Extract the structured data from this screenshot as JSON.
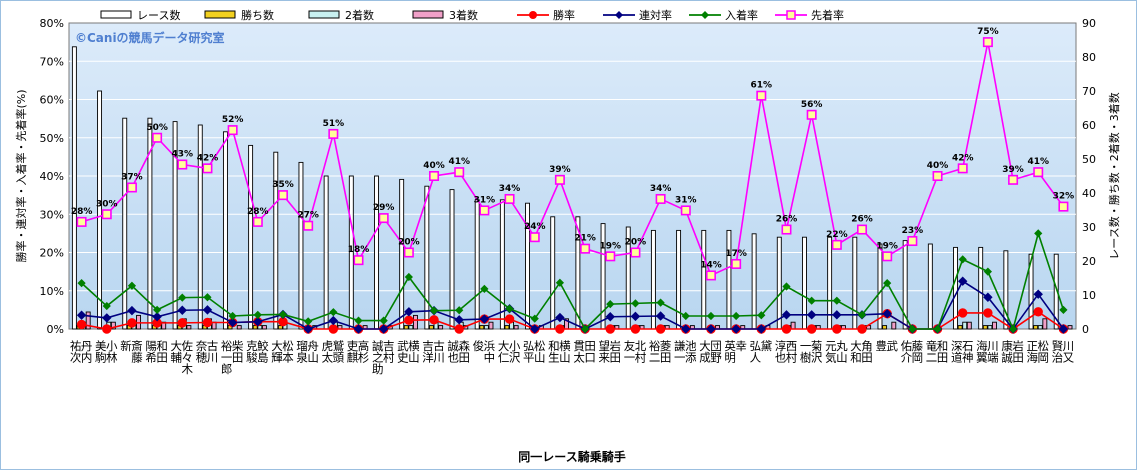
{
  "chart_data": {
    "type": "bar+line",
    "title": "",
    "watermark": "©Caniの競馬データ研究室",
    "xlabel": "同一レース騎乗騎手",
    "ylabel_left": "勝率・連対率・入着率・先着率(%)",
    "ylabel_right": "レース数・勝ち数・2着数・3着数",
    "ylim_left": [
      0,
      80
    ],
    "ylim_right": [
      0,
      90
    ],
    "left_ticks": [
      "0%",
      "10%",
      "20%",
      "30%",
      "40%",
      "50%",
      "60%",
      "70%",
      "80%"
    ],
    "right_ticks": [
      "0",
      "10",
      "20",
      "30",
      "40",
      "50",
      "60",
      "70",
      "80",
      "90"
    ],
    "legend_position": "top",
    "grid": true,
    "categories": [
      "丹内 祐次",
      "小林 美駒",
      "斎藤 新",
      "和田 陽希",
      "佐々木 大輔",
      "古川 奈穂",
      "柴田 裕一郎",
      "鮫島 克駿",
      "松本 大輝",
      "舟山 瑠泉",
      "鷲頭 虎太",
      "高杉 吏麒",
      "吉村 誠之助",
      "横山 武史",
      "古川 吉洋",
      "森田 誠也",
      "浜中 俊",
      "小沢 大仁",
      "松山 弘平",
      "横山 和生",
      "田口 貫太",
      "岩田 望来",
      "北村 友一",
      "菱田 裕二",
      "池添 謙一",
      "団野 大成",
      "幸 英明",
      "黛 弘人",
      "西村 淳也",
      "菊沢 一樹",
      "丸山 元気",
      "角田 大和",
      "武 豊",
      "藤岡 佑介",
      "和田 竜二",
      "石神 深道",
      "川端 海翼",
      "岩田 康誠",
      "松岡 正海",
      "川又 賢治"
    ],
    "series": [
      {
        "name": "レース数",
        "type": "bar",
        "axis": "right",
        "color": "#ffffff",
        "values": [
          83,
          70,
          62,
          62,
          61,
          60,
          58,
          54,
          52,
          49,
          45,
          45,
          45,
          44,
          42,
          41,
          38,
          38,
          37,
          33,
          33,
          31,
          30,
          29,
          29,
          29,
          29,
          28,
          27,
          27,
          27,
          27,
          25,
          26,
          25,
          24,
          24,
          23,
          22,
          22
        ]
      },
      {
        "name": "勝ち数",
        "type": "bar",
        "axis": "right",
        "color": "#f2d01f",
        "values": [
          1,
          0,
          1,
          1,
          1,
          1,
          1,
          1,
          1,
          0,
          0,
          0,
          0,
          1,
          1,
          0,
          1,
          1,
          0,
          0,
          0,
          0,
          0,
          0,
          0,
          0,
          0,
          0,
          0,
          0,
          0,
          0,
          1,
          0,
          0,
          1,
          1,
          0,
          1,
          0
        ]
      },
      {
        "name": "2着数",
        "type": "bar",
        "axis": "right",
        "color": "#c8f0f0",
        "values": [
          2,
          2,
          2,
          1,
          3,
          3,
          0,
          1,
          2,
          0,
          2,
          0,
          0,
          1,
          2,
          2,
          1,
          2,
          0,
          1,
          0,
          1,
          1,
          1,
          0,
          0,
          0,
          0,
          1,
          1,
          1,
          1,
          0,
          0,
          0,
          2,
          1,
          0,
          1,
          0
        ]
      },
      {
        "name": "3着数",
        "type": "bar",
        "axis": "right",
        "color": "#f0a0c8",
        "values": [
          5,
          2,
          4,
          2,
          1,
          2,
          1,
          1,
          0,
          1,
          1,
          1,
          1,
          4,
          1,
          1,
          2,
          1,
          1,
          3,
          0,
          1,
          1,
          1,
          1,
          1,
          1,
          1,
          2,
          1,
          1,
          1,
          2,
          0,
          0,
          2,
          2,
          0,
          3,
          1
        ]
      },
      {
        "name": "勝率",
        "type": "line",
        "axis": "left",
        "color": "#ff0000",
        "values": [
          1.2,
          0,
          1.6,
          1.6,
          1.6,
          1.7,
          1.7,
          1.9,
          1.9,
          0,
          0,
          0,
          0,
          2.3,
          2.4,
          0,
          2.6,
          2.6,
          0,
          0,
          0,
          0,
          0,
          0,
          0,
          0,
          0,
          0,
          0,
          0,
          0,
          0,
          4,
          0,
          0,
          4.2,
          4.2,
          0,
          4.5,
          0
        ]
      },
      {
        "name": "連対率",
        "type": "line",
        "axis": "left",
        "color": "#000080",
        "values": [
          3.6,
          2.9,
          4.8,
          3.2,
          4.9,
          5,
          1.7,
          1.9,
          3.8,
          0,
          2.2,
          0,
          0,
          4.5,
          4.8,
          2.4,
          2.6,
          5.3,
          0,
          3,
          0,
          3.2,
          3.3,
          3.4,
          0,
          0,
          0,
          0,
          3.7,
          3.7,
          3.7,
          3.7,
          4,
          0,
          0,
          12.5,
          8.3,
          0,
          9.1,
          0
        ]
      },
      {
        "name": "入着率",
        "type": "line",
        "axis": "left",
        "color": "#008000",
        "values": [
          12,
          6,
          11.3,
          5,
          8.2,
          8.3,
          3.4,
          3.7,
          3.8,
          2,
          4.4,
          2.2,
          2.2,
          13.6,
          4.8,
          4.9,
          10.5,
          5.3,
          2.7,
          12.1,
          0,
          6.5,
          6.7,
          6.9,
          3.4,
          3.4,
          3.4,
          3.6,
          11.1,
          7.4,
          7.4,
          3.7,
          12,
          0,
          0,
          18.2,
          15,
          0,
          25,
          5
        ]
      },
      {
        "name": "先着率",
        "type": "line",
        "axis": "left",
        "color": "#ff00ff",
        "values": [
          28,
          30,
          37,
          50,
          43,
          42,
          52,
          28,
          35,
          27,
          51,
          18,
          29,
          20,
          40,
          41,
          31,
          34,
          24,
          39,
          21,
          19,
          20,
          34,
          31,
          14,
          17,
          61,
          26,
          56,
          22,
          26,
          19,
          23,
          40,
          42,
          75,
          39,
          41,
          32
        ]
      }
    ],
    "point_labels": [
      "28%",
      "30%",
      "37%",
      "50%",
      "43%",
      "42%",
      "52%",
      "28%",
      "35%",
      "27%",
      "51%",
      "18%",
      "29%",
      "20%",
      "40%",
      "41%",
      "31%",
      "34%",
      "24%",
      "39%",
      "21%",
      "19%",
      "20%",
      "34%",
      "31%",
      "14%",
      "17%",
      "61%",
      "26%",
      "56%",
      "22%",
      "26%",
      "19%",
      "23%",
      "40%",
      "42%",
      "75%",
      "39%",
      "41%",
      "32%"
    ]
  }
}
